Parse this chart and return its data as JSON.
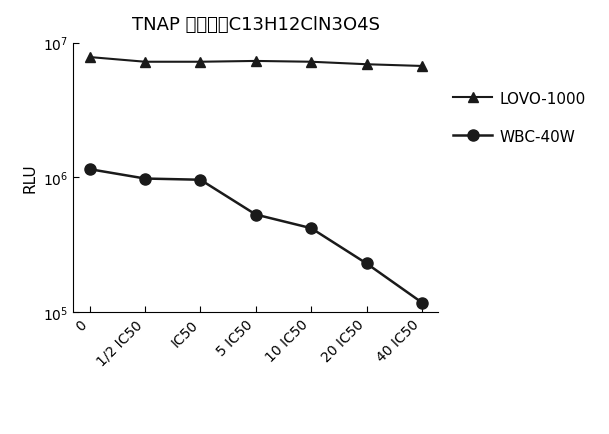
{
  "title": "TNAP 抑制剑：C13H12ClN3O4S",
  "ylabel": "RLU",
  "xlabel": "",
  "x_labels": [
    "0",
    "1/2 IC50",
    "IC50",
    "5 IC50",
    "10 IC50",
    "20 IC50",
    "40 IC50"
  ],
  "lovo_values": [
    7800000,
    7200000,
    7200000,
    7300000,
    7200000,
    6900000,
    6700000
  ],
  "wbc_values": [
    1150000,
    980000,
    960000,
    530000,
    420000,
    230000,
    118000
  ],
  "lovo_color": "#1a1a1a",
  "wbc_color": "#1a1a1a",
  "ylim_low": 100000,
  "ylim_high": 10000000,
  "legend_lovo": "LOVO-1000",
  "legend_wbc": "WBC-40W",
  "title_fontsize": 13,
  "label_fontsize": 11,
  "tick_fontsize": 10,
  "legend_fontsize": 11,
  "figsize": [
    6.09,
    4.35
  ],
  "dpi": 100
}
